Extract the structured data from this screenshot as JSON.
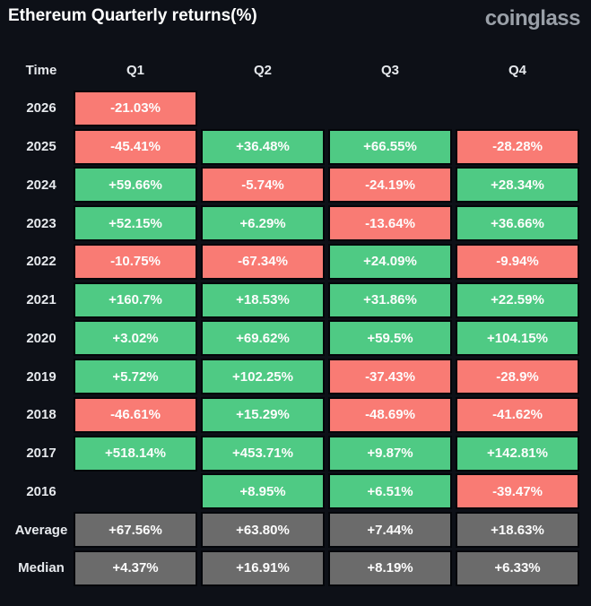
{
  "header": {
    "title": "Ethereum Quarterly returns(%)",
    "brand": "coinglass"
  },
  "colors": {
    "background": "#0d1017",
    "up": "#4fca84",
    "down": "#f97b74",
    "neutral": "#6b6b6b",
    "cell_border": "#04060a",
    "text": "#fdfdfd"
  },
  "table": {
    "columns": [
      "Time",
      "Q1",
      "Q2",
      "Q3",
      "Q4"
    ],
    "rows": [
      {
        "label": "2026",
        "cells": [
          {
            "text": "-21.03%",
            "type": "down"
          },
          {
            "text": "",
            "type": "empty"
          },
          {
            "text": "",
            "type": "empty"
          },
          {
            "text": "",
            "type": "empty"
          }
        ]
      },
      {
        "label": "2025",
        "cells": [
          {
            "text": "-45.41%",
            "type": "down"
          },
          {
            "text": "+36.48%",
            "type": "up"
          },
          {
            "text": "+66.55%",
            "type": "up"
          },
          {
            "text": "-28.28%",
            "type": "down"
          }
        ]
      },
      {
        "label": "2024",
        "cells": [
          {
            "text": "+59.66%",
            "type": "up"
          },
          {
            "text": "-5.74%",
            "type": "down"
          },
          {
            "text": "-24.19%",
            "type": "down"
          },
          {
            "text": "+28.34%",
            "type": "up"
          }
        ]
      },
      {
        "label": "2023",
        "cells": [
          {
            "text": "+52.15%",
            "type": "up"
          },
          {
            "text": "+6.29%",
            "type": "up"
          },
          {
            "text": "-13.64%",
            "type": "down"
          },
          {
            "text": "+36.66%",
            "type": "up"
          }
        ]
      },
      {
        "label": "2022",
        "cells": [
          {
            "text": "-10.75%",
            "type": "down"
          },
          {
            "text": "-67.34%",
            "type": "down"
          },
          {
            "text": "+24.09%",
            "type": "up"
          },
          {
            "text": "-9.94%",
            "type": "down"
          }
        ]
      },
      {
        "label": "2021",
        "cells": [
          {
            "text": "+160.7%",
            "type": "up"
          },
          {
            "text": "+18.53%",
            "type": "up"
          },
          {
            "text": "+31.86%",
            "type": "up"
          },
          {
            "text": "+22.59%",
            "type": "up"
          }
        ]
      },
      {
        "label": "2020",
        "cells": [
          {
            "text": "+3.02%",
            "type": "up"
          },
          {
            "text": "+69.62%",
            "type": "up"
          },
          {
            "text": "+59.5%",
            "type": "up"
          },
          {
            "text": "+104.15%",
            "type": "up"
          }
        ]
      },
      {
        "label": "2019",
        "cells": [
          {
            "text": "+5.72%",
            "type": "up"
          },
          {
            "text": "+102.25%",
            "type": "up"
          },
          {
            "text": "-37.43%",
            "type": "down"
          },
          {
            "text": "-28.9%",
            "type": "down"
          }
        ]
      },
      {
        "label": "2018",
        "cells": [
          {
            "text": "-46.61%",
            "type": "down"
          },
          {
            "text": "+15.29%",
            "type": "up"
          },
          {
            "text": "-48.69%",
            "type": "down"
          },
          {
            "text": "-41.62%",
            "type": "down"
          }
        ]
      },
      {
        "label": "2017",
        "cells": [
          {
            "text": "+518.14%",
            "type": "up"
          },
          {
            "text": "+453.71%",
            "type": "up"
          },
          {
            "text": "+9.87%",
            "type": "up"
          },
          {
            "text": "+142.81%",
            "type": "up"
          }
        ]
      },
      {
        "label": "2016",
        "cells": [
          {
            "text": "",
            "type": "empty"
          },
          {
            "text": "+8.95%",
            "type": "up"
          },
          {
            "text": "+6.51%",
            "type": "up"
          },
          {
            "text": "-39.47%",
            "type": "down"
          }
        ]
      },
      {
        "label": "Average",
        "cells": [
          {
            "text": "+67.56%",
            "type": "avg"
          },
          {
            "text": "+63.80%",
            "type": "avg"
          },
          {
            "text": "+7.44%",
            "type": "avg"
          },
          {
            "text": "+18.63%",
            "type": "avg"
          }
        ]
      },
      {
        "label": "Median",
        "cells": [
          {
            "text": "+4.37%",
            "type": "avg"
          },
          {
            "text": "+16.91%",
            "type": "avg"
          },
          {
            "text": "+8.19%",
            "type": "avg"
          },
          {
            "text": "+6.33%",
            "type": "avg"
          }
        ]
      }
    ]
  },
  "chart_data": {
    "type": "table",
    "title": "Ethereum Quarterly returns(%)",
    "columns": [
      "Q1",
      "Q2",
      "Q3",
      "Q4"
    ],
    "row_labels": [
      "2026",
      "2025",
      "2024",
      "2023",
      "2022",
      "2021",
      "2020",
      "2019",
      "2018",
      "2017",
      "2016",
      "Average",
      "Median"
    ],
    "values": [
      [
        -21.03,
        null,
        null,
        null
      ],
      [
        -45.41,
        36.48,
        66.55,
        -28.28
      ],
      [
        59.66,
        -5.74,
        -24.19,
        28.34
      ],
      [
        52.15,
        6.29,
        -13.64,
        36.66
      ],
      [
        -10.75,
        -67.34,
        24.09,
        -9.94
      ],
      [
        160.7,
        18.53,
        31.86,
        22.59
      ],
      [
        3.02,
        69.62,
        59.5,
        104.15
      ],
      [
        5.72,
        102.25,
        -37.43,
        -28.9
      ],
      [
        -46.61,
        15.29,
        -48.69,
        -41.62
      ],
      [
        518.14,
        453.71,
        9.87,
        142.81
      ],
      [
        null,
        8.95,
        6.51,
        -39.47
      ],
      [
        67.56,
        63.8,
        7.44,
        18.63
      ],
      [
        4.37,
        16.91,
        8.19,
        6.33
      ]
    ],
    "color_coding": "green = positive return, red = negative return, gray = Average/Median summary rows",
    "legend_position": "none",
    "grid": "off"
  }
}
